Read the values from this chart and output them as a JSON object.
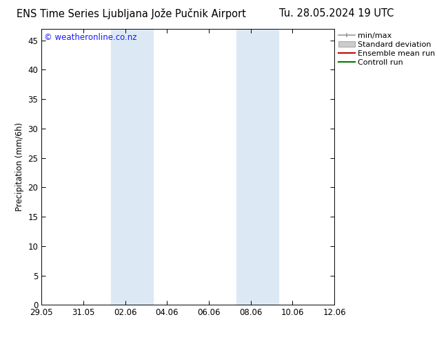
{
  "title_left": "ENS Time Series Ljubljana Jože Pučnik Airport",
  "title_right": "Tu. 28.05.2024 19 UTC",
  "ylabel": "Precipitation (mm/6h)",
  "copyright": "© weatheronline.co.nz",
  "ylim": [
    0,
    47
  ],
  "yticks": [
    0,
    5,
    10,
    15,
    20,
    25,
    30,
    35,
    40,
    45
  ],
  "xtick_labels": [
    "29.05",
    "31.05",
    "02.06",
    "04.06",
    "06.06",
    "08.06",
    "10.06",
    "12.06"
  ],
  "xtick_positions": [
    0,
    2,
    4,
    6,
    8,
    10,
    12,
    14
  ],
  "xlim": [
    0,
    14
  ],
  "shaded_bands": [
    {
      "x_start": 3.33,
      "x_end": 5.33
    },
    {
      "x_start": 9.33,
      "x_end": 11.33
    }
  ],
  "shade_color": "#dce9f5",
  "background_color": "#ffffff",
  "legend_items": [
    {
      "label": "min/max",
      "color": "#999999",
      "type": "hline_ticks"
    },
    {
      "label": "Standard deviation",
      "color": "#cccccc",
      "type": "rect"
    },
    {
      "label": "Ensemble mean run",
      "color": "#cc0000",
      "type": "line"
    },
    {
      "label": "Controll run",
      "color": "#007700",
      "type": "line"
    }
  ],
  "title_fontsize": 10.5,
  "axis_fontsize": 8.5,
  "legend_fontsize": 8,
  "copyright_fontsize": 8.5,
  "copyright_color": "#1a1aff"
}
